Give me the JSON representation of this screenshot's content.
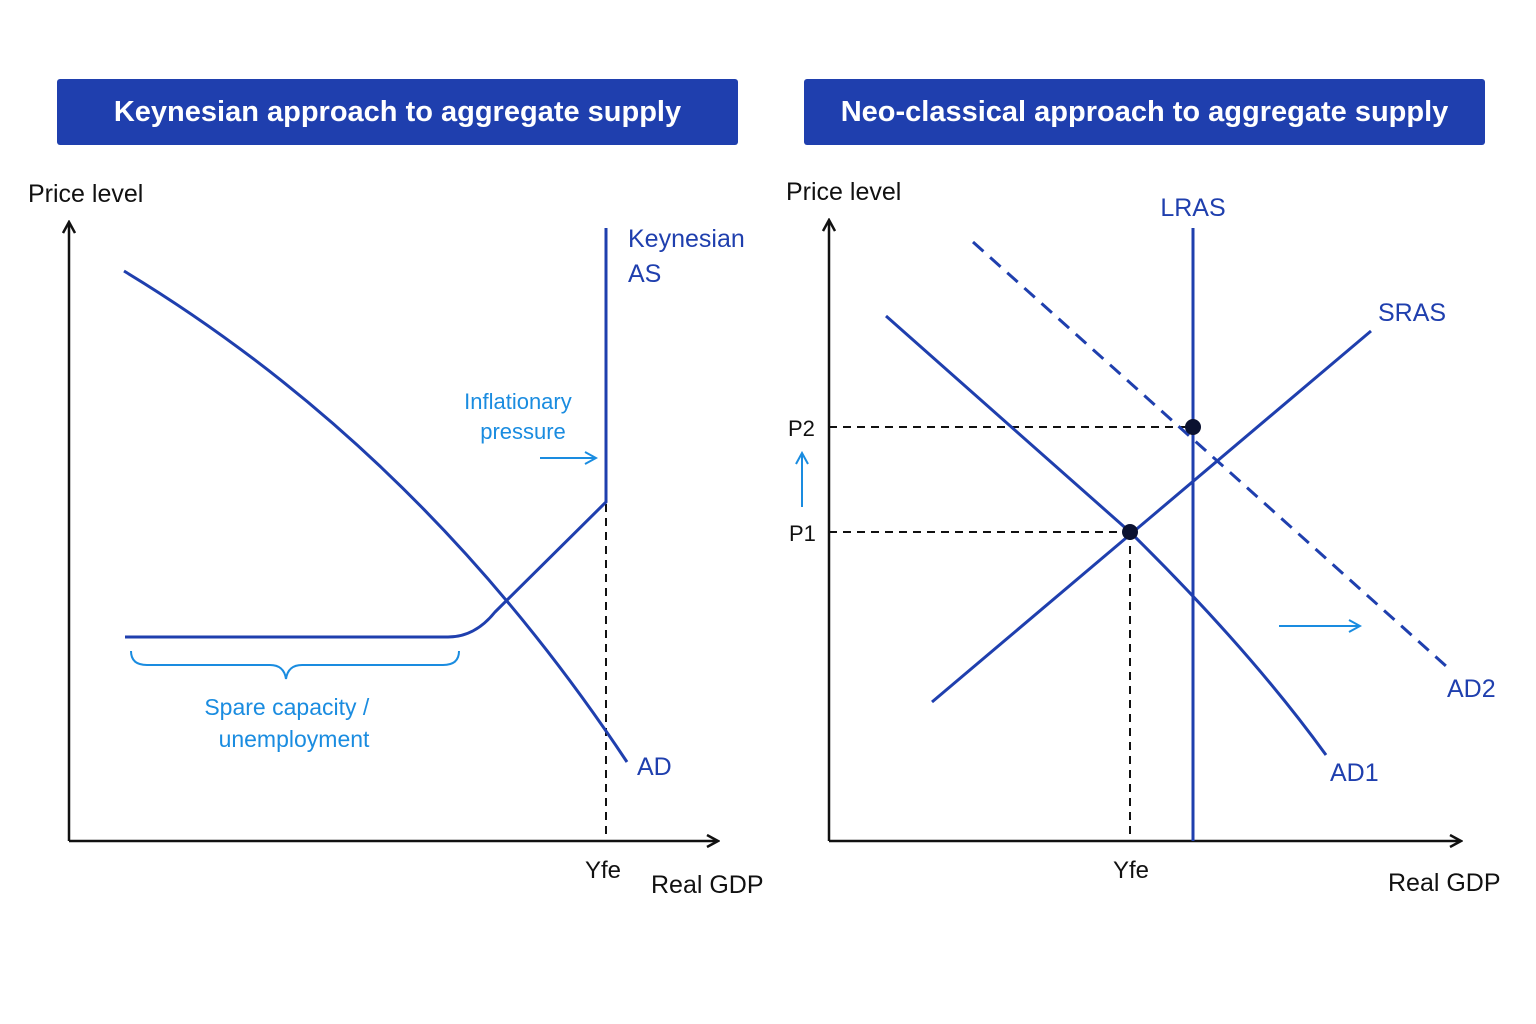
{
  "colors": {
    "title_bg": "#1f3fae",
    "curve": "#1f3fae",
    "annotation": "#1a8ce0",
    "axis": "#111111"
  },
  "left": {
    "title": "Keynesian approach to aggregate supply",
    "y_label": "Price level",
    "x_label": "Real GDP",
    "yfe_label": "Yfe",
    "as_label_1": "Keynesian",
    "as_label_2": "AS",
    "ad_label": "AD",
    "inflation_1": "Inflationary",
    "inflation_2": "pressure",
    "spare_1": "Spare capacity /",
    "spare_2": "unemployment"
  },
  "right": {
    "title": "Neo-classical approach to aggregate supply",
    "y_label": "Price level",
    "x_label": "Real GDP",
    "yfe_label": "Yfe",
    "lras_label": "LRAS",
    "sras_label": "SRAS",
    "ad1_label": "AD1",
    "ad2_label": "AD2",
    "p1_label": "P1",
    "p2_label": "P2"
  }
}
